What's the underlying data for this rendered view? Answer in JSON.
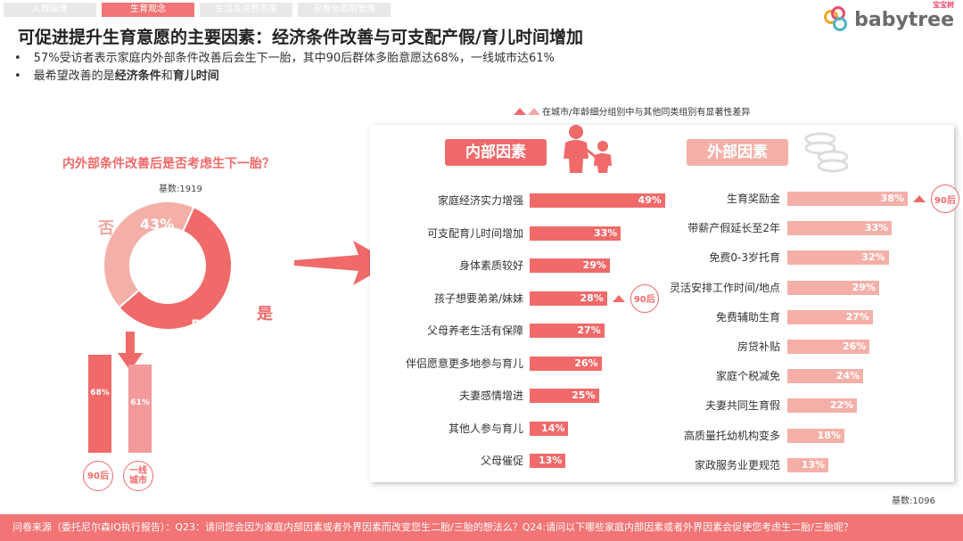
{
  "tabs": [
    "人群画像",
    "生育观念",
    "生活及消费态度",
    "孕育全周期管理"
  ],
  "active_tab": 1,
  "brand": {
    "name": "babytree",
    "small": "宝宝树"
  },
  "title": "可促进提升生育意愿的主要因素：经济条件改善与可支配产假/育儿时间增加",
  "bullets": {
    "b1": "57%受访者表示家庭内外部条件改善后会生下一胎，其中90后群体多胎意愿达68%，一线城市达61%",
    "b2_pre": "最希望改善的是",
    "b2_bold1": "经济条件",
    "b2_mid": "和",
    "b2_bold2": "育儿时间"
  },
  "legend_note": "在城市/年龄细分组别中与其他同类组别有显著性差异",
  "colors": {
    "accent": "#f06a6a",
    "light": "#f4b0a8",
    "mid": "#f49a9a",
    "footer": "#f27474"
  },
  "chart_data": [
    {
      "type": "pie",
      "title": "内外部条件改善后是否考虑生下一胎？",
      "base": "基数:1919",
      "slices": [
        {
          "name": "是",
          "value": 57,
          "label": "57%"
        },
        {
          "name": "否",
          "value": 43,
          "label": "43%"
        }
      ]
    },
    {
      "type": "bar",
      "categories": [
        "90后",
        "一线城市"
      ],
      "values": [
        68,
        61
      ],
      "labels": [
        "68%",
        "61%"
      ]
    },
    {
      "type": "bar",
      "title": "内部因素",
      "categories": [
        "家庭经济实力增强",
        "可支配育儿时间增加",
        "身体素质较好",
        "孩子想要弟弟/妹妹",
        "父母养老生活有保障",
        "伴侣愿意更多地参与育儿",
        "夫妻感情增进",
        "其他人参与育儿",
        "父母催促"
      ],
      "values": [
        49,
        33,
        29,
        28,
        27,
        26,
        25,
        14,
        13
      ],
      "labels": [
        "49%",
        "33%",
        "29%",
        "28%",
        "27%",
        "26%",
        "25%",
        "14%",
        "13%"
      ],
      "markers": [
        {
          "index": 3,
          "text": "90后"
        }
      ]
    },
    {
      "type": "bar",
      "title": "外部因素",
      "categories": [
        "生育奖励金",
        "带薪产假延长至2年",
        "免费0-3岁托育",
        "灵活安排工作时间/地点",
        "免费辅助生育",
        "房贷补贴",
        "家庭个税减免",
        "夫妻共同生育假",
        "高质量托幼机构变多",
        "家政服务业更规范"
      ],
      "values": [
        38,
        33,
        32,
        29,
        27,
        26,
        24,
        22,
        18,
        13
      ],
      "labels": [
        "38%",
        "33%",
        "32%",
        "29%",
        "27%",
        "26%",
        "24%",
        "22%",
        "18%",
        "13%"
      ],
      "markers": [
        {
          "index": 0,
          "text": "90后"
        }
      ]
    }
  ],
  "base_right": "基数:1096",
  "footer": "问卷来源（委托尼尔森IQ执行报告）：Q23：请问您会因为家庭内部因素或者外界因素而改变您生二胎/三胎的想法么？Q24:请问以下哪些家庭内部因素或者外界因素会促使您考虑生二胎/三胎呢？"
}
